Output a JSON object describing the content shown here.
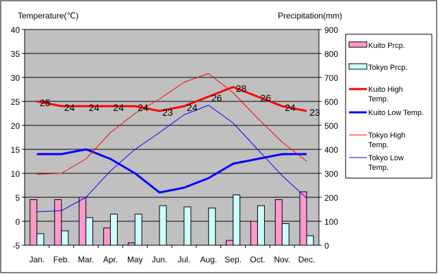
{
  "chart_data": {
    "type": "bar",
    "title_left": "Temperature(℃)",
    "title_right": "Precipitation(mm)",
    "categories": [
      "Jan.",
      "Feb.",
      "Mar.",
      "Apr.",
      "May",
      "Jun.",
      "Jul.",
      "Aug.",
      "Sep.",
      "Oct.",
      "Nov.",
      "Dec."
    ],
    "y_left": {
      "min": -5,
      "max": 40,
      "ticks": [
        "-5",
        "0",
        "5",
        "10",
        "15",
        "20",
        "25",
        "30",
        "35",
        "40"
      ]
    },
    "y_right": {
      "min": 0,
      "max": 900,
      "ticks": [
        "0",
        "100",
        "200",
        "300",
        "400",
        "500",
        "600",
        "700",
        "800",
        "900"
      ]
    },
    "colors": {
      "kuito_prcp": "#ff99cc",
      "tokyo_prcp": "#ccffff",
      "kuito_high": "#ff0000",
      "kuito_low": "#0000ff",
      "tokyo_high": "#ff0000",
      "tokyo_low": "#0000ff",
      "plot_bg": "#c0c0c0"
    },
    "series": [
      {
        "name": "Kuito Prcp.",
        "kind": "bar",
        "axis": "right",
        "values": [
          190,
          190,
          200,
          72,
          10,
          0,
          0,
          0,
          20,
          100,
          190,
          223
        ]
      },
      {
        "name": "Tokyo Prcp.",
        "kind": "bar",
        "axis": "right",
        "values": [
          48,
          60,
          115,
          130,
          130,
          165,
          160,
          155,
          210,
          165,
          90,
          40
        ]
      },
      {
        "name": "Kuito High Temp.",
        "kind": "line",
        "axis": "left",
        "values": [
          25,
          24,
          24,
          24,
          24,
          23,
          24,
          26,
          28,
          26,
          24,
          23
        ],
        "labels": [
          "25",
          "24",
          "24",
          "24",
          "24",
          "23",
          "24",
          "26",
          "28",
          "26",
          "24",
          "23"
        ]
      },
      {
        "name": "Kuito Low Temp.",
        "kind": "line",
        "axis": "left",
        "values": [
          14,
          14,
          15,
          13,
          10,
          6,
          7,
          9,
          12,
          13,
          14,
          14
        ]
      },
      {
        "name": "Tokyo High Temp.",
        "kind": "line",
        "axis": "left",
        "values": [
          9.8,
          10,
          13,
          18.5,
          22.5,
          25.5,
          29,
          30.8,
          26.8,
          21.5,
          16.5,
          12.5
        ]
      },
      {
        "name": "Tokyo Low Temp.",
        "kind": "line",
        "axis": "left",
        "values": [
          2,
          2.2,
          5,
          10.5,
          15,
          18.5,
          22.2,
          24.2,
          20.5,
          15,
          9.5,
          4.8
        ]
      }
    ],
    "legend": [
      {
        "label_lines": [
          "Kuito Prcp."
        ]
      },
      {
        "label_lines": [
          "Tokyo Prcp."
        ]
      },
      {
        "label_lines": [
          "Kuito High",
          "Temp."
        ]
      },
      {
        "label_lines": [
          "Kuito Low Temp."
        ]
      },
      {
        "label_lines": [
          "Tokyo High",
          "Temp."
        ]
      },
      {
        "label_lines": [
          "Tokyo Low",
          "Temp."
        ]
      }
    ],
    "legend_position": "right"
  }
}
